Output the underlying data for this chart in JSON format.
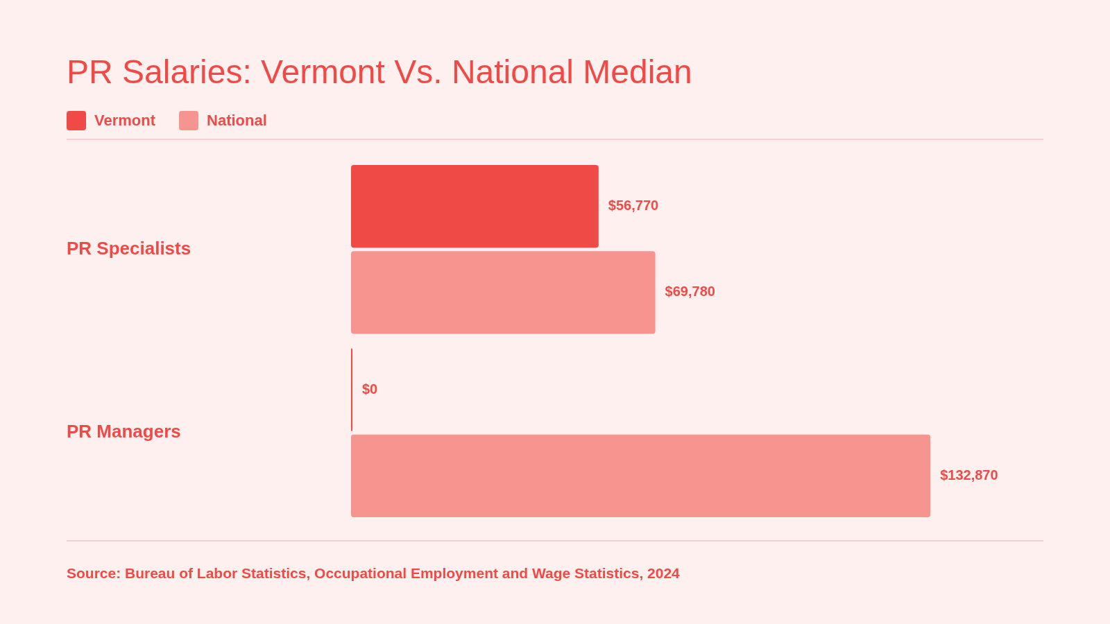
{
  "chart_data": {
    "type": "bar",
    "orientation": "horizontal",
    "tick_labels": "y",
    "title": "PR Salaries: Vermont Vs. National Median",
    "categories": [
      "PR Specialists",
      "PR Managers"
    ],
    "series": [
      {
        "name": "Vermont",
        "color": "#f04a46",
        "values": [
          56770,
          0
        ],
        "value_labels": [
          "$56,770",
          "$0"
        ]
      },
      {
        "name": "National",
        "color": "#f69490",
        "values": [
          69780,
          132870
        ],
        "value_labels": [
          "$69,780",
          "$132,870"
        ]
      }
    ],
    "legend": "top left",
    "annotations": [
      "Source: Bureau of Labor Statistics, Occupational Employment and Wage Statistics, 2024"
    ]
  }
}
